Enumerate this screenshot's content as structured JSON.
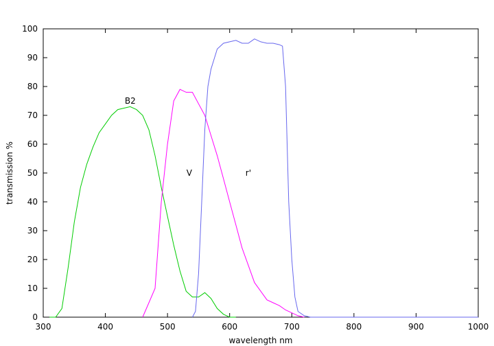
{
  "chart_data": {
    "type": "line",
    "xlabel": "wavelength nm",
    "ylabel": "transmission %",
    "xlim": [
      300,
      1000
    ],
    "ylim": [
      0,
      100
    ],
    "xticks": [
      300,
      400,
      500,
      600,
      700,
      800,
      900,
      1000
    ],
    "yticks": [
      0,
      10,
      20,
      30,
      40,
      50,
      60,
      70,
      80,
      90,
      100
    ],
    "grid": false,
    "series": [
      {
        "name": "B2",
        "color": "#00cc00",
        "label_at": [
          440,
          75
        ],
        "x": [
          310,
          320,
          330,
          340,
          350,
          360,
          370,
          380,
          390,
          400,
          410,
          420,
          430,
          440,
          450,
          460,
          470,
          480,
          490,
          500,
          510,
          520,
          530,
          540,
          550,
          560,
          570,
          580,
          590,
          600,
          610
        ],
        "y": [
          0,
          0,
          3,
          17,
          33,
          45,
          53,
          59,
          64,
          67,
          70,
          72,
          72.5,
          73,
          72,
          70,
          65,
          56,
          45,
          35,
          25,
          16,
          9,
          7,
          7,
          8.5,
          6.5,
          3,
          1,
          0,
          0
        ]
      },
      {
        "name": "V",
        "color": "#ff00ff",
        "label_at": [
          535,
          50
        ],
        "x": [
          460,
          470,
          480,
          490,
          500,
          510,
          520,
          530,
          540,
          550,
          560,
          570,
          580,
          590,
          600,
          610,
          620,
          630,
          640,
          650,
          660,
          670,
          680,
          690,
          700,
          710,
          720
        ],
        "y": [
          0,
          5,
          10,
          40,
          60,
          75,
          79,
          78,
          78,
          74,
          70,
          63,
          56,
          48,
          40,
          32,
          24,
          18,
          12,
          9,
          6,
          5,
          4,
          2.5,
          1.5,
          0.5,
          0
        ]
      },
      {
        "name": "r'",
        "color": "#6666ee",
        "label_at": [
          630,
          50
        ],
        "x": [
          540,
          545,
          550,
          555,
          560,
          565,
          570,
          580,
          590,
          600,
          610,
          620,
          630,
          640,
          650,
          660,
          670,
          680,
          685,
          690,
          695,
          700,
          705,
          710,
          720,
          730,
          1000
        ],
        "y": [
          0,
          2,
          15,
          40,
          65,
          80,
          86,
          93,
          95,
          95.5,
          96,
          95,
          95,
          96.5,
          95.5,
          95,
          95,
          94.5,
          94,
          80,
          40,
          20,
          7,
          2,
          0.5,
          0,
          0
        ]
      }
    ]
  }
}
